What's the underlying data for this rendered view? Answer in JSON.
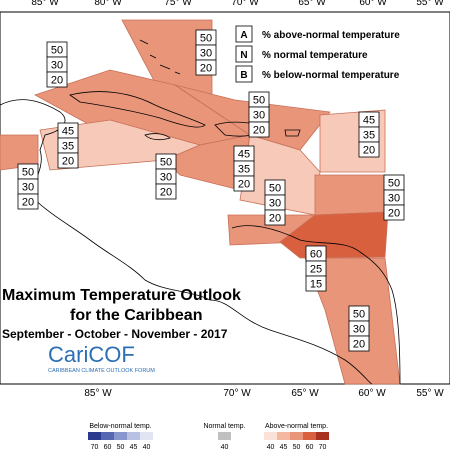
{
  "map": {
    "title": [
      "Maximum Temperature Outlook",
      "for the Caribbean"
    ],
    "season": "September - October - November - 2017",
    "top_longitudes": [
      "85° W",
      "80° W",
      "75° W",
      "70° W",
      "65° W",
      "60° W",
      "55° W"
    ],
    "bottom_longitudes": [
      "85° W",
      "70° W",
      "65° W",
      "60° W",
      "55° W"
    ],
    "logo": {
      "name": "CariCOF",
      "subtitle": "CARIBBEAN CLIMATE OUTLOOK FORUM"
    },
    "key": [
      {
        "letter": "A",
        "text": "% above-normal temperature"
      },
      {
        "letter": "N",
        "text": "% normal temperature"
      },
      {
        "letter": "B",
        "text": "% below-normal temperature"
      }
    ],
    "regions": [
      {
        "above": 50,
        "normal": 30,
        "below": 20,
        "color": "#e8957a"
      },
      {
        "above": 50,
        "normal": 30,
        "below": 20,
        "color": "#e8957a"
      },
      {
        "above": 50,
        "normal": 30,
        "below": 20,
        "color": "#e8957a"
      },
      {
        "above": 45,
        "normal": 35,
        "below": 20,
        "color": "#f6c9b8"
      },
      {
        "above": 45,
        "normal": 35,
        "below": 20,
        "color": "#f6c9b8"
      },
      {
        "above": 50,
        "normal": 30,
        "below": 20,
        "color": "#e8957a"
      },
      {
        "above": 50,
        "normal": 30,
        "below": 20,
        "color": "#e8957a"
      },
      {
        "above": 45,
        "normal": 35,
        "below": 20,
        "color": "#f6c9b8"
      },
      {
        "above": 50,
        "normal": 30,
        "below": 20,
        "color": "#e8957a"
      },
      {
        "above": 50,
        "normal": 30,
        "below": 20,
        "color": "#e8957a"
      },
      {
        "above": 60,
        "normal": 25,
        "below": 15,
        "color": "#d9603f"
      },
      {
        "above": 50,
        "normal": 30,
        "below": 20,
        "color": "#e8957a"
      }
    ],
    "scale": {
      "below_title": "Below-normal temp.",
      "normal_title": "Normal temp.",
      "above_title": "Above-normal temp.",
      "below": [
        {
          "label": "70",
          "color": "#2b3a8c"
        },
        {
          "label": "60",
          "color": "#5567b0"
        },
        {
          "label": "50",
          "color": "#8a97cf"
        },
        {
          "label": "45",
          "color": "#b9c1e3"
        },
        {
          "label": "40",
          "color": "#e1e5f3"
        }
      ],
      "normal": [
        {
          "label": "40",
          "color": "#c0c0c0"
        }
      ],
      "above": [
        {
          "label": "40",
          "color": "#fbe1d7"
        },
        {
          "label": "45",
          "color": "#f4b7a0"
        },
        {
          "label": "50",
          "color": "#e8957a"
        },
        {
          "label": "60",
          "color": "#d9603f"
        },
        {
          "label": "70",
          "color": "#a8321f"
        }
      ]
    }
  }
}
